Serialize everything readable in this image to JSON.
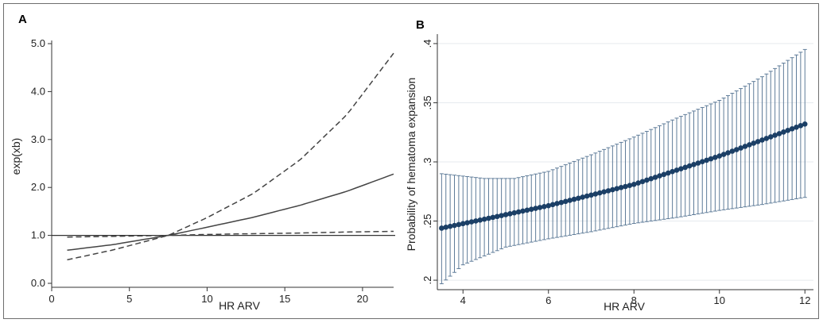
{
  "chart_data": [
    {
      "panel_label": "A",
      "type": "line",
      "xlabel": "HR ARV",
      "ylabel": "exp(xb)",
      "xlim": [
        0,
        22
      ],
      "ylim": [
        0,
        5
      ],
      "x_ticks": [
        0,
        5,
        10,
        15,
        20
      ],
      "y_ticks": [
        0,
        1,
        2,
        3,
        4,
        5
      ],
      "x_tick_labels": [
        "0",
        "5",
        "10",
        "15",
        "20"
      ],
      "y_tick_labels": [
        "0.0",
        "1.0",
        "2.0",
        "3.0",
        "4.0",
        "5.0"
      ],
      "reference_line_y": 1.0,
      "grid": false,
      "series": [
        {
          "style": "solid",
          "x": [
            1,
            4,
            7.5,
            10,
            13,
            16,
            19,
            22
          ],
          "y": [
            0.69,
            0.81,
            1.0,
            1.17,
            1.38,
            1.63,
            1.92,
            2.28
          ]
        },
        {
          "style": "dashed",
          "x": [
            1,
            4,
            7.5,
            10,
            13,
            16,
            19,
            22
          ],
          "y": [
            0.49,
            0.7,
            1.0,
            1.37,
            1.88,
            2.58,
            3.52,
            4.8
          ]
        },
        {
          "style": "dashed",
          "x": [
            1,
            4,
            7.5,
            10,
            13,
            16,
            19,
            22
          ],
          "y": [
            0.965,
            0.98,
            1.0,
            1.02,
            1.035,
            1.05,
            1.07,
            1.085
          ]
        }
      ]
    },
    {
      "panel_label": "B",
      "type": "line",
      "xlabel": "HR ARV",
      "ylabel": "Probability of hematoma expansion",
      "xlim": [
        3.4,
        12.2
      ],
      "ylim": [
        0.192,
        0.408
      ],
      "x_ticks": [
        4,
        6,
        8,
        10,
        12
      ],
      "y_ticks": [
        0.2,
        0.25,
        0.3,
        0.35,
        0.4
      ],
      "x_tick_labels": [
        "4",
        "6",
        "8",
        "10",
        "12"
      ],
      "y_tick_labels": [
        ".2",
        ".25",
        ".3",
        ".35",
        ".4"
      ],
      "grid": true,
      "x_range": [
        3.5,
        12
      ],
      "point_step": 0.1,
      "prediction": {
        "x": [
          3.5,
          6,
          8,
          10,
          12
        ],
        "y": [
          0.244,
          0.263,
          0.281,
          0.305,
          0.332
        ]
      },
      "ci_upper": {
        "x": [
          3.5,
          4.5,
          5.2,
          6,
          7,
          8,
          9,
          10,
          11,
          12
        ],
        "y": [
          0.29,
          0.286,
          0.286,
          0.292,
          0.306,
          0.321,
          0.337,
          0.352,
          0.372,
          0.395
        ]
      },
      "ci_lower": {
        "x": [
          3.5,
          4,
          5,
          6,
          7,
          8,
          9,
          10,
          11,
          12
        ],
        "y": [
          0.197,
          0.213,
          0.228,
          0.235,
          0.241,
          0.248,
          0.253,
          0.259,
          0.264,
          0.27
        ]
      },
      "colors": {
        "marker": "#1b3f66",
        "ci": "#5f7c99",
        "grid": "#e6eaee"
      }
    }
  ]
}
